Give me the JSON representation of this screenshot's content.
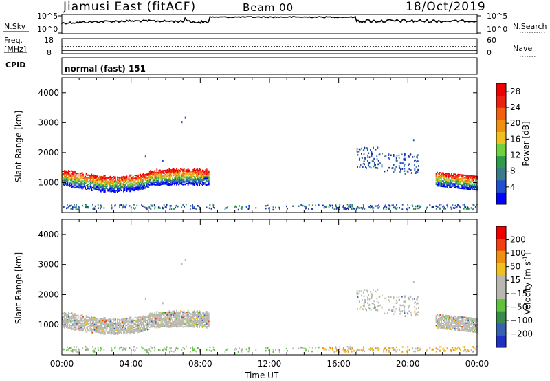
{
  "header": {
    "station": "Jiamusi East (fitACF)",
    "beam": "Beam 00",
    "date": "18/Oct/2019"
  },
  "noise_panel": {
    "left_label": "N.Sky",
    "right_label": "N.Search",
    "yticks_left": [
      "10^5",
      "10^0"
    ],
    "yticks_right": [
      "10^5",
      "10^0"
    ]
  },
  "freq_panel": {
    "left_label_line1": "Freq.",
    "left_label_line2": "[MHz]",
    "right_label": "Nave",
    "yticks_left": [
      "18",
      "8"
    ],
    "yticks_right": [
      "60",
      "0"
    ]
  },
  "cpid_panel": {
    "label": "CPID",
    "mode_text": "normal (fast) 151"
  },
  "chart_data": [
    {
      "type": "heatmap",
      "name": "Power",
      "ylabel": "Slant Range [km]",
      "xlabel": "Time UT",
      "yticks": [
        1000,
        2000,
        3000,
        4000
      ],
      "ylim": [
        0,
        4500
      ],
      "xticks": [
        "00:00",
        "04:00",
        "08:00",
        "12:00",
        "16:00",
        "20:00",
        "00:00"
      ],
      "colorbar": {
        "label": "Power [dB]",
        "ticks": [
          "4",
          "8",
          "12",
          "16",
          "20",
          "24",
          "28"
        ],
        "colors": [
          "#0000ff",
          "#2050d0",
          "#3a7a8a",
          "#2e9a4a",
          "#70d040",
          "#f0c020",
          "#f09010",
          "#f06010",
          "#ee2010",
          "#ee0000"
        ]
      },
      "echo_regions": [
        {
          "t_start": 0.0,
          "t_end": 8.5,
          "range_low": 650,
          "range_high": 1450,
          "note": "dense band"
        },
        {
          "t_start": 17.0,
          "t_end": 20.5,
          "range_low": 1500,
          "range_high": 2300
        },
        {
          "t_start": 21.5,
          "t_end": 24.0,
          "range_low": 700,
          "range_high": 1500
        }
      ]
    },
    {
      "type": "heatmap",
      "name": "Velocity",
      "ylabel": "Slant Range [km]",
      "xlabel": "Time UT",
      "yticks": [
        1000,
        2000,
        3000,
        4000
      ],
      "ylim": [
        0,
        4500
      ],
      "xticks": [
        "00:00",
        "04:00",
        "08:00",
        "12:00",
        "16:00",
        "20:00",
        "00:00"
      ],
      "colorbar": {
        "label": "Velocity [m s^-1]",
        "ticks": [
          "200",
          "100",
          "50",
          "15",
          "-15",
          "-50",
          "-100",
          "-200"
        ],
        "colors": [
          "#2030c0",
          "#3860b0",
          "#3a8a50",
          "#60c040",
          "#b8b8b0",
          "#b8b8b0",
          "#f0c020",
          "#f09010",
          "#f04010",
          "#ee0000"
        ]
      }
    }
  ]
}
